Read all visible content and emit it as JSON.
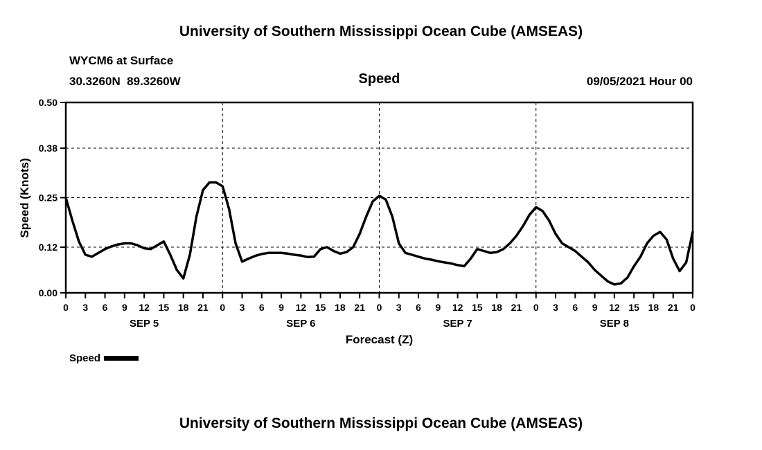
{
  "page": {
    "top_title": "University of Southern Mississippi Ocean Cube (AMSEAS)",
    "bottom_title": "University of Southern Mississippi Ocean Cube (AMSEAS)"
  },
  "header": {
    "station": "WYCM6 at Surface",
    "coordinates": "30.3260N  89.3260W",
    "plot_title": "Speed",
    "run_time": "09/05/2021 Hour 00"
  },
  "chart_data": {
    "type": "line",
    "title": "Speed",
    "xlabel": "Forecast (Z)",
    "ylabel": "Speed (Knots)",
    "xlim": [
      0,
      96
    ],
    "ylim": [
      0.0,
      0.5
    ],
    "yticks": [
      0.0,
      0.12,
      0.25,
      0.38,
      0.5
    ],
    "ytick_labels": [
      "0.00",
      "0.12",
      "0.25",
      "0.38",
      "0.50"
    ],
    "xtick_step_hours": 3,
    "xtick_labels": [
      "0",
      "3",
      "6",
      "9",
      "12",
      "15",
      "18",
      "21",
      "0",
      "3",
      "6",
      "9",
      "12",
      "15",
      "18",
      "21",
      "0",
      "3",
      "6",
      "9",
      "12",
      "15",
      "18",
      "21",
      "0",
      "3",
      "6",
      "9",
      "12",
      "15",
      "18",
      "21",
      "0"
    ],
    "x_gridlines_hours": [
      24,
      48,
      72
    ],
    "day_labels": [
      "SEP 5",
      "SEP 6",
      "SEP 7",
      "SEP 8"
    ],
    "grid_style": "dashed",
    "legend_position": "bottom-left",
    "legend": [
      {
        "name": "Speed",
        "color": "#000000"
      }
    ],
    "series": [
      {
        "name": "Speed",
        "units": "knots",
        "x_start_hour": 0,
        "x_step_hours": 1,
        "values": [
          0.25,
          0.19,
          0.135,
          0.1,
          0.095,
          0.105,
          0.115,
          0.122,
          0.127,
          0.13,
          0.13,
          0.125,
          0.117,
          0.115,
          0.125,
          0.135,
          0.1,
          0.06,
          0.038,
          0.1,
          0.2,
          0.27,
          0.29,
          0.29,
          0.28,
          0.22,
          0.13,
          0.082,
          0.09,
          0.097,
          0.102,
          0.105,
          0.105,
          0.105,
          0.103,
          0.1,
          0.098,
          0.094,
          0.095,
          0.115,
          0.12,
          0.11,
          0.103,
          0.107,
          0.12,
          0.155,
          0.2,
          0.24,
          0.255,
          0.245,
          0.2,
          0.13,
          0.105,
          0.1,
          0.095,
          0.09,
          0.087,
          0.083,
          0.08,
          0.077,
          0.073,
          0.07,
          0.09,
          0.115,
          0.11,
          0.105,
          0.107,
          0.115,
          0.13,
          0.15,
          0.175,
          0.205,
          0.225,
          0.215,
          0.19,
          0.155,
          0.13,
          0.12,
          0.11,
          0.095,
          0.08,
          0.06,
          0.045,
          0.03,
          0.022,
          0.025,
          0.04,
          0.07,
          0.095,
          0.13,
          0.15,
          0.16,
          0.14,
          0.09,
          0.057,
          0.08,
          0.16
        ]
      }
    ]
  }
}
